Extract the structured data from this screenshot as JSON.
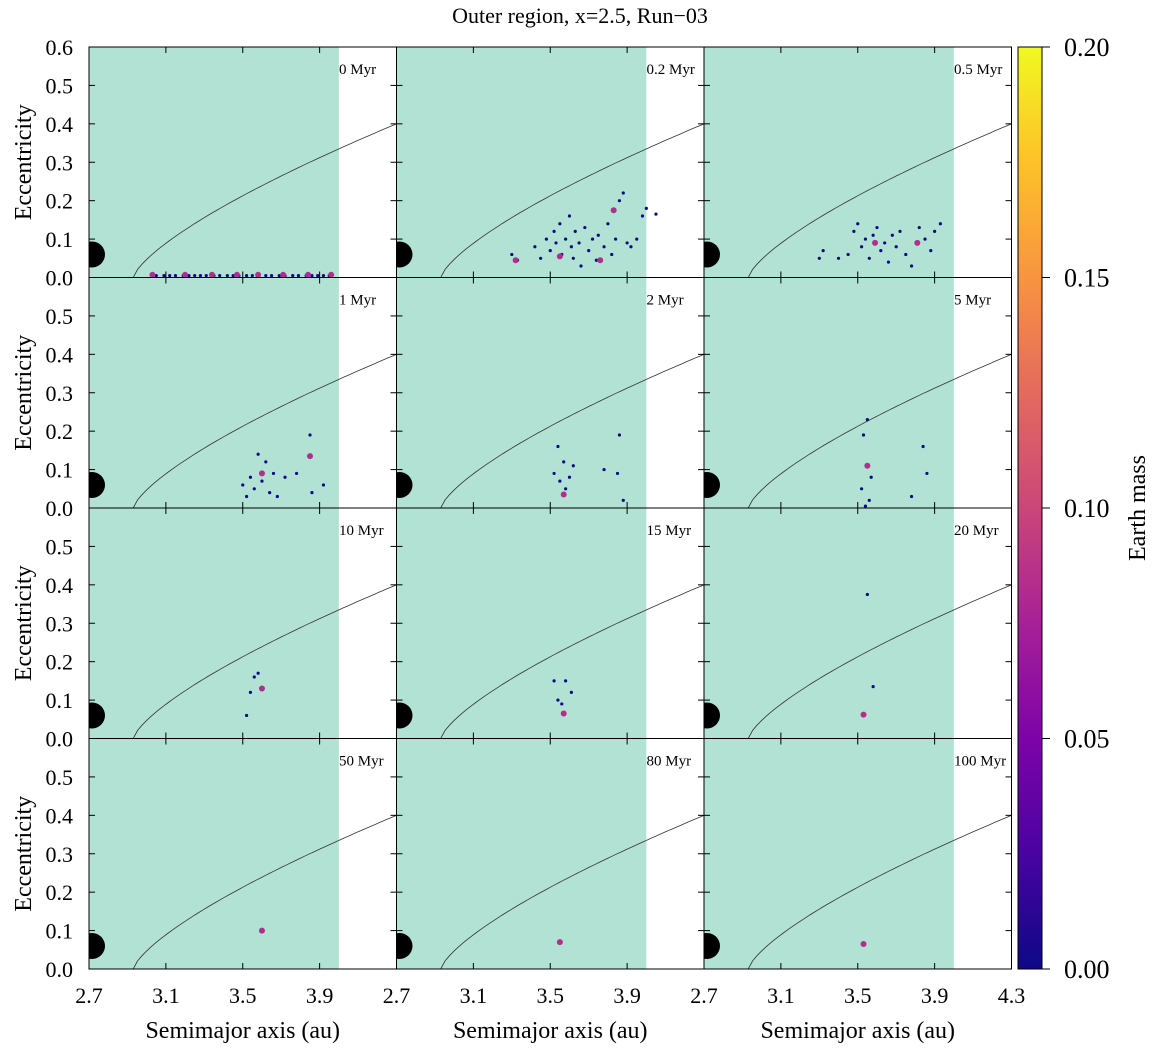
{
  "chart_data": {
    "type": "scatter",
    "title": "Outer region, x=2.5, Run−03",
    "xlabel": "Semimajor axis (au)",
    "ylabel": "Eccentricity",
    "colorbar_label": "Earth mass",
    "xlim": [
      2.7,
      4.3
    ],
    "ylim": [
      0.0,
      0.6
    ],
    "x_ticks_first": [
      "2.7",
      "3.1",
      "3.5",
      "3.9"
    ],
    "x_ticks_last": [
      "2.7",
      "3.1",
      "3.5",
      "3.9",
      "4.3"
    ],
    "y_ticks_top": [
      "0.0",
      "0.1",
      "0.2",
      "0.3",
      "0.4",
      "0.5",
      "0.6"
    ],
    "y_ticks_other": [
      "0.0",
      "0.1",
      "0.2",
      "0.3",
      "0.4",
      "0.5"
    ],
    "colorbar_ticks": [
      "0.00",
      "0.05",
      "0.10",
      "0.15",
      "0.20"
    ],
    "colorbar_range": [
      0.0,
      0.2
    ],
    "shaded_region_x": [
      2.7,
      4.0
    ],
    "shaded_color": "#b2e2d3",
    "curve_color": "#333333",
    "small_color": "#0d0a87",
    "large_color": "#b02f8c",
    "jupiter_marker": {
      "a": 2.71,
      "e": 0.06,
      "color": "#000000"
    },
    "panels": [
      {
        "time": "0 Myr",
        "small": [
          [
            3.05,
            0.005
          ],
          [
            3.09,
            0.005
          ],
          [
            3.12,
            0.005
          ],
          [
            3.15,
            0.005
          ],
          [
            3.19,
            0.005
          ],
          [
            3.22,
            0.005
          ],
          [
            3.25,
            0.005
          ],
          [
            3.28,
            0.005
          ],
          [
            3.31,
            0.005
          ],
          [
            3.35,
            0.005
          ],
          [
            3.38,
            0.005
          ],
          [
            3.42,
            0.005
          ],
          [
            3.45,
            0.005
          ],
          [
            3.48,
            0.005
          ],
          [
            3.52,
            0.005
          ],
          [
            3.55,
            0.005
          ],
          [
            3.58,
            0.005
          ],
          [
            3.62,
            0.005
          ],
          [
            3.65,
            0.005
          ],
          [
            3.69,
            0.005
          ],
          [
            3.72,
            0.005
          ],
          [
            3.76,
            0.005
          ],
          [
            3.79,
            0.005
          ],
          [
            3.83,
            0.005
          ],
          [
            3.86,
            0.005
          ],
          [
            3.89,
            0.005
          ],
          [
            3.92,
            0.005
          ],
          [
            3.95,
            0.005
          ]
        ],
        "large": [
          [
            3.03,
            0.007
          ],
          [
            3.2,
            0.007
          ],
          [
            3.34,
            0.007
          ],
          [
            3.47,
            0.007
          ],
          [
            3.58,
            0.007
          ],
          [
            3.71,
            0.007
          ],
          [
            3.84,
            0.007
          ],
          [
            3.96,
            0.007
          ]
        ]
      },
      {
        "time": "0.2 Myr",
        "small": [
          [
            3.3,
            0.06
          ],
          [
            3.33,
            0.045
          ],
          [
            3.42,
            0.08
          ],
          [
            3.45,
            0.05
          ],
          [
            3.48,
            0.1
          ],
          [
            3.5,
            0.07
          ],
          [
            3.52,
            0.12
          ],
          [
            3.53,
            0.09
          ],
          [
            3.55,
            0.14
          ],
          [
            3.56,
            0.06
          ],
          [
            3.58,
            0.1
          ],
          [
            3.6,
            0.16
          ],
          [
            3.61,
            0.08
          ],
          [
            3.62,
            0.05
          ],
          [
            3.63,
            0.12
          ],
          [
            3.65,
            0.09
          ],
          [
            3.66,
            0.03
          ],
          [
            3.68,
            0.13
          ],
          [
            3.7,
            0.07
          ],
          [
            3.72,
            0.1
          ],
          [
            3.74,
            0.045
          ],
          [
            3.75,
            0.11
          ],
          [
            3.78,
            0.08
          ],
          [
            3.8,
            0.14
          ],
          [
            3.82,
            0.06
          ],
          [
            3.84,
            0.1
          ],
          [
            3.86,
            0.2
          ],
          [
            3.88,
            0.22
          ],
          [
            3.9,
            0.09
          ],
          [
            3.92,
            0.08
          ],
          [
            3.95,
            0.1
          ],
          [
            3.98,
            0.16
          ],
          [
            4.0,
            0.18
          ],
          [
            4.05,
            0.165
          ]
        ],
        "large": [
          [
            3.32,
            0.045
          ],
          [
            3.55,
            0.055
          ],
          [
            3.76,
            0.045
          ],
          [
            3.83,
            0.175
          ]
        ]
      },
      {
        "time": "0.5 Myr",
        "small": [
          [
            3.3,
            0.05
          ],
          [
            3.32,
            0.07
          ],
          [
            3.4,
            0.05
          ],
          [
            3.45,
            0.06
          ],
          [
            3.48,
            0.12
          ],
          [
            3.5,
            0.14
          ],
          [
            3.52,
            0.08
          ],
          [
            3.54,
            0.1
          ],
          [
            3.56,
            0.05
          ],
          [
            3.58,
            0.11
          ],
          [
            3.6,
            0.13
          ],
          [
            3.62,
            0.07
          ],
          [
            3.64,
            0.09
          ],
          [
            3.66,
            0.04
          ],
          [
            3.68,
            0.11
          ],
          [
            3.7,
            0.08
          ],
          [
            3.72,
            0.12
          ],
          [
            3.75,
            0.06
          ],
          [
            3.78,
            0.03
          ],
          [
            3.82,
            0.13
          ],
          [
            3.85,
            0.1
          ],
          [
            3.88,
            0.07
          ],
          [
            3.9,
            0.12
          ],
          [
            3.93,
            0.14
          ]
        ],
        "large": [
          [
            3.59,
            0.09
          ],
          [
            3.81,
            0.09
          ]
        ]
      },
      {
        "time": "1 Myr",
        "small": [
          [
            3.5,
            0.06
          ],
          [
            3.52,
            0.03
          ],
          [
            3.54,
            0.08
          ],
          [
            3.56,
            0.05
          ],
          [
            3.58,
            0.14
          ],
          [
            3.6,
            0.07
          ],
          [
            3.62,
            0.12
          ],
          [
            3.64,
            0.04
          ],
          [
            3.66,
            0.09
          ],
          [
            3.68,
            0.03
          ],
          [
            3.72,
            0.08
          ],
          [
            3.78,
            0.09
          ],
          [
            3.85,
            0.19
          ],
          [
            3.86,
            0.04
          ],
          [
            3.92,
            0.06
          ]
        ],
        "large": [
          [
            3.6,
            0.09
          ],
          [
            3.85,
            0.135
          ]
        ]
      },
      {
        "time": "2 Myr",
        "small": [
          [
            3.52,
            0.09
          ],
          [
            3.54,
            0.16
          ],
          [
            3.55,
            0.07
          ],
          [
            3.57,
            0.12
          ],
          [
            3.58,
            0.05
          ],
          [
            3.6,
            0.08
          ],
          [
            3.62,
            0.11
          ],
          [
            3.78,
            0.1
          ],
          [
            3.85,
            0.09
          ],
          [
            3.86,
            0.19
          ],
          [
            3.88,
            0.02
          ]
        ],
        "large": [
          [
            3.57,
            0.035
          ]
        ]
      },
      {
        "time": "5 Myr",
        "small": [
          [
            3.53,
            0.19
          ],
          [
            3.55,
            0.23
          ],
          [
            3.57,
            0.08
          ],
          [
            3.54,
            0.005
          ],
          [
            3.56,
            0.02
          ],
          [
            3.52,
            0.05
          ],
          [
            3.78,
            0.03
          ],
          [
            3.84,
            0.16
          ],
          [
            3.86,
            0.09
          ]
        ],
        "large": [
          [
            3.55,
            0.11
          ]
        ]
      },
      {
        "time": "10 Myr",
        "small": [
          [
            3.52,
            0.06
          ],
          [
            3.54,
            0.12
          ],
          [
            3.56,
            0.16
          ],
          [
            3.58,
            0.17
          ],
          [
            3.6,
            0.13
          ]
        ],
        "large": [
          [
            3.6,
            0.13
          ]
        ]
      },
      {
        "time": "15 Myr",
        "small": [
          [
            3.52,
            0.15
          ],
          [
            3.54,
            0.1
          ],
          [
            3.56,
            0.09
          ],
          [
            3.58,
            0.15
          ],
          [
            3.61,
            0.12
          ]
        ],
        "large": [
          [
            3.57,
            0.065
          ]
        ]
      },
      {
        "time": "20 Myr",
        "small": [
          [
            3.55,
            0.375
          ],
          [
            3.58,
            0.135
          ]
        ],
        "large": [
          [
            3.53,
            0.062
          ]
        ]
      },
      {
        "time": "50 Myr",
        "small": [],
        "large": [
          [
            3.6,
            0.1
          ]
        ]
      },
      {
        "time": "80 Myr",
        "small": [],
        "large": [
          [
            3.55,
            0.07
          ]
        ]
      },
      {
        "time": "100 Myr",
        "small": [],
        "large": [
          [
            3.53,
            0.065
          ]
        ]
      }
    ]
  }
}
